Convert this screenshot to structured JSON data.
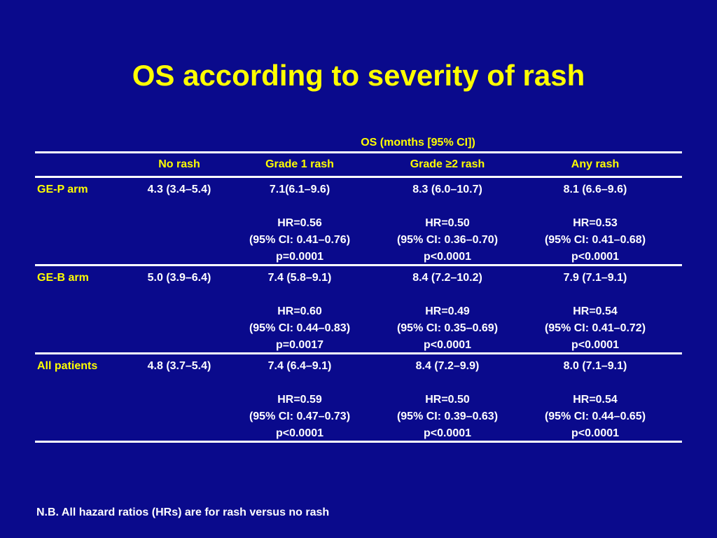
{
  "slide": {
    "title": "OS according to severity of rash",
    "footnote": "N.B. All hazard ratios (HRs) are for rash versus no rash"
  },
  "table": {
    "group_header": "OS (months [95% CI])",
    "columns": [
      "",
      "No rash",
      "Grade 1 rash",
      "Grade ≥2 rash",
      "Any rash"
    ],
    "rows": [
      {
        "label": "GE-P arm",
        "no_rash": "4.3 (3.4–5.4)",
        "grade1": {
          "os": "7.1(6.1–9.6)",
          "hr": "HR=0.56",
          "ci": "(95% CI: 0.41–0.76)",
          "p": "p=0.0001"
        },
        "grade2": {
          "os": "8.3 (6.0–10.7)",
          "hr": "HR=0.50",
          "ci": "(95% CI: 0.36–0.70)",
          "p": "p<0.0001"
        },
        "any": {
          "os": "8.1 (6.6–9.6)",
          "hr": "HR=0.53",
          "ci": "(95% CI: 0.41–0.68)",
          "p": "p<0.0001"
        }
      },
      {
        "label": "GE-B arm",
        "no_rash": "5.0 (3.9–6.4)",
        "grade1": {
          "os": "7.4 (5.8–9.1)",
          "hr": "HR=0.60",
          "ci": "(95% CI: 0.44–0.83)",
          "p": "p=0.0017"
        },
        "grade2": {
          "os": "8.4 (7.2–10.2)",
          "hr": "HR=0.49",
          "ci": "(95% CI: 0.35–0.69)",
          "p": "p<0.0001"
        },
        "any": {
          "os": "7.9 (7.1–9.1)",
          "hr": "HR=0.54",
          "ci": "(95% CI: 0.41–0.72)",
          "p": "p<0.0001"
        }
      },
      {
        "label": "All patients",
        "no_rash": "4.8 (3.7–5.4)",
        "grade1": {
          "os": "7.4 (6.4–9.1)",
          "hr": "HR=0.59",
          "ci": "(95% CI: 0.47–0.73)",
          "p": "p<0.0001"
        },
        "grade2": {
          "os": "8.4 (7.2–9.9)",
          "hr": "HR=0.50",
          "ci": "(95% CI: 0.39–0.63)",
          "p": "p<0.0001"
        },
        "any": {
          "os": "8.0 (7.1–9.1)",
          "hr": "HR=0.54",
          "ci": "(95% CI: 0.44–0.65)",
          "p": "p<0.0001"
        }
      }
    ]
  },
  "colors": {
    "background": "#0a0a8c",
    "title": "#ffff00",
    "header_text": "#ffff00",
    "body_text": "#ffffff",
    "rules": "#ffffff"
  }
}
